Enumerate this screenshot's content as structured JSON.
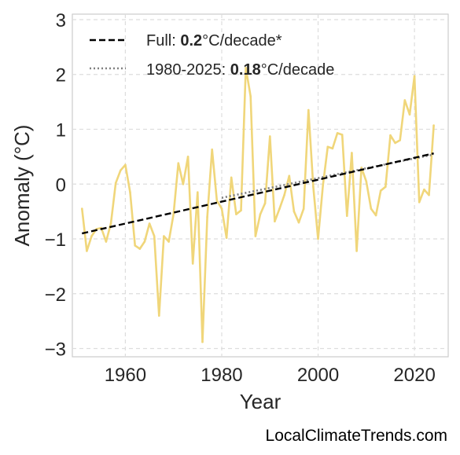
{
  "chart_data": {
    "type": "line",
    "xlabel": "Year",
    "ylabel": "Anomaly (°C)",
    "xlim": [
      1949,
      2027
    ],
    "ylim": [
      -3.15,
      3.1
    ],
    "xticks": [
      1960,
      1980,
      2000,
      2020
    ],
    "yticks": [
      -3,
      -2,
      -1,
      0,
      1,
      2,
      3
    ],
    "ytick_labels": [
      "−3",
      "−2",
      "−1",
      "0",
      "1",
      "2",
      "3"
    ],
    "grid": true,
    "legend_position": "top-left",
    "legend": [
      {
        "prefix": "Full: ",
        "value": "0.2",
        "suffix": "°C/decade*",
        "style": "dashed",
        "color": "#000000"
      },
      {
        "prefix": "1980-2025: ",
        "value": "0.18",
        "suffix": "°C/decade",
        "style": "dotted",
        "color": "#808080"
      }
    ],
    "series": [
      {
        "color": "#f0d67a",
        "x": [
          1951,
          1952,
          1953,
          1954,
          1955,
          1956,
          1957,
          1958,
          1959,
          1960,
          1961,
          1962,
          1963,
          1964,
          1965,
          1966,
          1967,
          1968,
          1969,
          1970,
          1971,
          1972,
          1973,
          1974,
          1975,
          1976,
          1977,
          1978,
          1979,
          1980,
          1981,
          1982,
          1983,
          1984,
          1985,
          1986,
          1987,
          1988,
          1989,
          1990,
          1991,
          1992,
          1993,
          1994,
          1995,
          1996,
          1997,
          1998,
          1999,
          2000,
          2001,
          2002,
          2003,
          2004,
          2005,
          2006,
          2007,
          2008,
          2009,
          2010,
          2011,
          2012,
          2013,
          2014,
          2015,
          2016,
          2017,
          2018,
          2019,
          2020,
          2021,
          2022,
          2023,
          2024
        ],
        "y": [
          -0.45,
          -1.22,
          -0.95,
          -0.82,
          -0.8,
          -1.05,
          -0.72,
          0.02,
          0.25,
          0.35,
          -0.15,
          -1.12,
          -1.18,
          -1.05,
          -0.72,
          -0.95,
          -2.4,
          -0.95,
          -1.05,
          -0.55,
          0.38,
          0.0,
          0.5,
          -1.45,
          -0.15,
          -2.88,
          -0.6,
          0.63,
          -0.3,
          -0.45,
          -0.98,
          0.12,
          -0.55,
          -0.48,
          2.12,
          1.6,
          -0.95,
          -0.55,
          -0.35,
          0.87,
          -0.68,
          -0.45,
          -0.2,
          0.15,
          -0.5,
          -0.7,
          -0.45,
          1.35,
          -0.05,
          -1.0,
          -0.02,
          0.68,
          0.65,
          0.93,
          0.9,
          -0.58,
          0.57,
          -1.22,
          0.3,
          0.05,
          -0.45,
          -0.57,
          -0.12,
          -0.05,
          0.89,
          0.75,
          0.8,
          1.53,
          1.27,
          1.97,
          -0.33,
          -0.1,
          -0.2,
          1.07
        ]
      }
    ],
    "trend_full": {
      "x": [
        1951,
        2024
      ],
      "y": [
        -0.9,
        0.56
      ]
    },
    "trend_recent": {
      "x": [
        1980,
        2024
      ],
      "y": [
        -0.25,
        0.54
      ]
    }
  },
  "credit": "LocalClimateTrends.com"
}
